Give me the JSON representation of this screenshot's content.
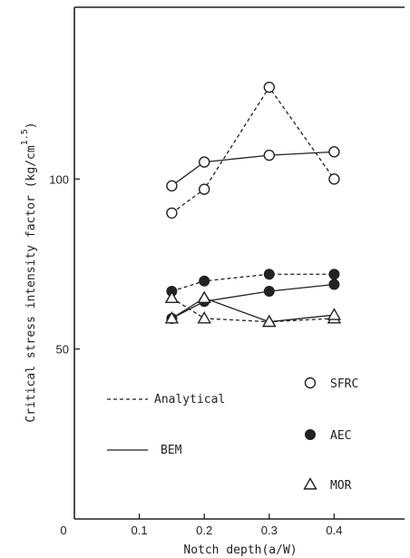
{
  "chart_data": {
    "type": "line",
    "xlabel": "Notch depth(a/W)",
    "ylabel": "Critical stress intensity factor (kg/cm",
    "ylabel_exponent": "1.5",
    "ylabel_close": ")",
    "xlim": [
      0,
      0.5
    ],
    "ylim": [
      0,
      150
    ],
    "x_ticks": [
      0.1,
      0.2,
      0.3,
      0.4
    ],
    "x_tick_labels": [
      "0.1",
      "0.2",
      "0.3",
      "0.4"
    ],
    "origin_label": "0",
    "y_ticks": [
      50,
      100
    ],
    "y_tick_labels": [
      "50",
      "100"
    ],
    "grid": false,
    "series": [
      {
        "name": "SFRC",
        "method": "Analytical",
        "marker": "open-circle",
        "line": "dashed",
        "x": [
          0.15,
          0.2,
          0.3,
          0.4
        ],
        "y": [
          90,
          97,
          127,
          100
        ]
      },
      {
        "name": "SFRC",
        "method": "BEM",
        "marker": "open-circle",
        "line": "solid",
        "x": [
          0.15,
          0.2,
          0.3,
          0.4
        ],
        "y": [
          98,
          105,
          107,
          108
        ]
      },
      {
        "name": "AEC",
        "method": "Analytical",
        "marker": "filled-circle",
        "line": "dashed",
        "x": [
          0.15,
          0.2,
          0.3,
          0.4
        ],
        "y": [
          67,
          70,
          72,
          72
        ]
      },
      {
        "name": "AEC",
        "method": "BEM",
        "marker": "filled-circle",
        "line": "solid",
        "x": [
          0.15,
          0.2,
          0.3,
          0.4
        ],
        "y": [
          59,
          64,
          67,
          69
        ]
      },
      {
        "name": "MOR",
        "method": "Analytical",
        "marker": "open-triangle",
        "line": "dashed",
        "x": [
          0.15,
          0.2,
          0.3,
          0.4
        ],
        "y": [
          65,
          59,
          58,
          59
        ]
      },
      {
        "name": "MOR",
        "method": "BEM",
        "marker": "open-triangle",
        "line": "solid",
        "x": [
          0.15,
          0.2,
          0.3,
          0.4
        ],
        "y": [
          59,
          65,
          58,
          60
        ]
      }
    ],
    "legend": {
      "placement": "lower-left",
      "lines": [
        {
          "label": "Analytical",
          "style": "dashed"
        },
        {
          "label": "BEM",
          "style": "solid"
        }
      ],
      "markers": [
        {
          "label": "SFRC",
          "marker": "open-circle"
        },
        {
          "label": "AEC",
          "marker": "filled-circle"
        },
        {
          "label": "MOR",
          "marker": "open-triangle"
        }
      ]
    },
    "colors": {
      "ink": "#222222",
      "background": "#ffffff"
    }
  }
}
